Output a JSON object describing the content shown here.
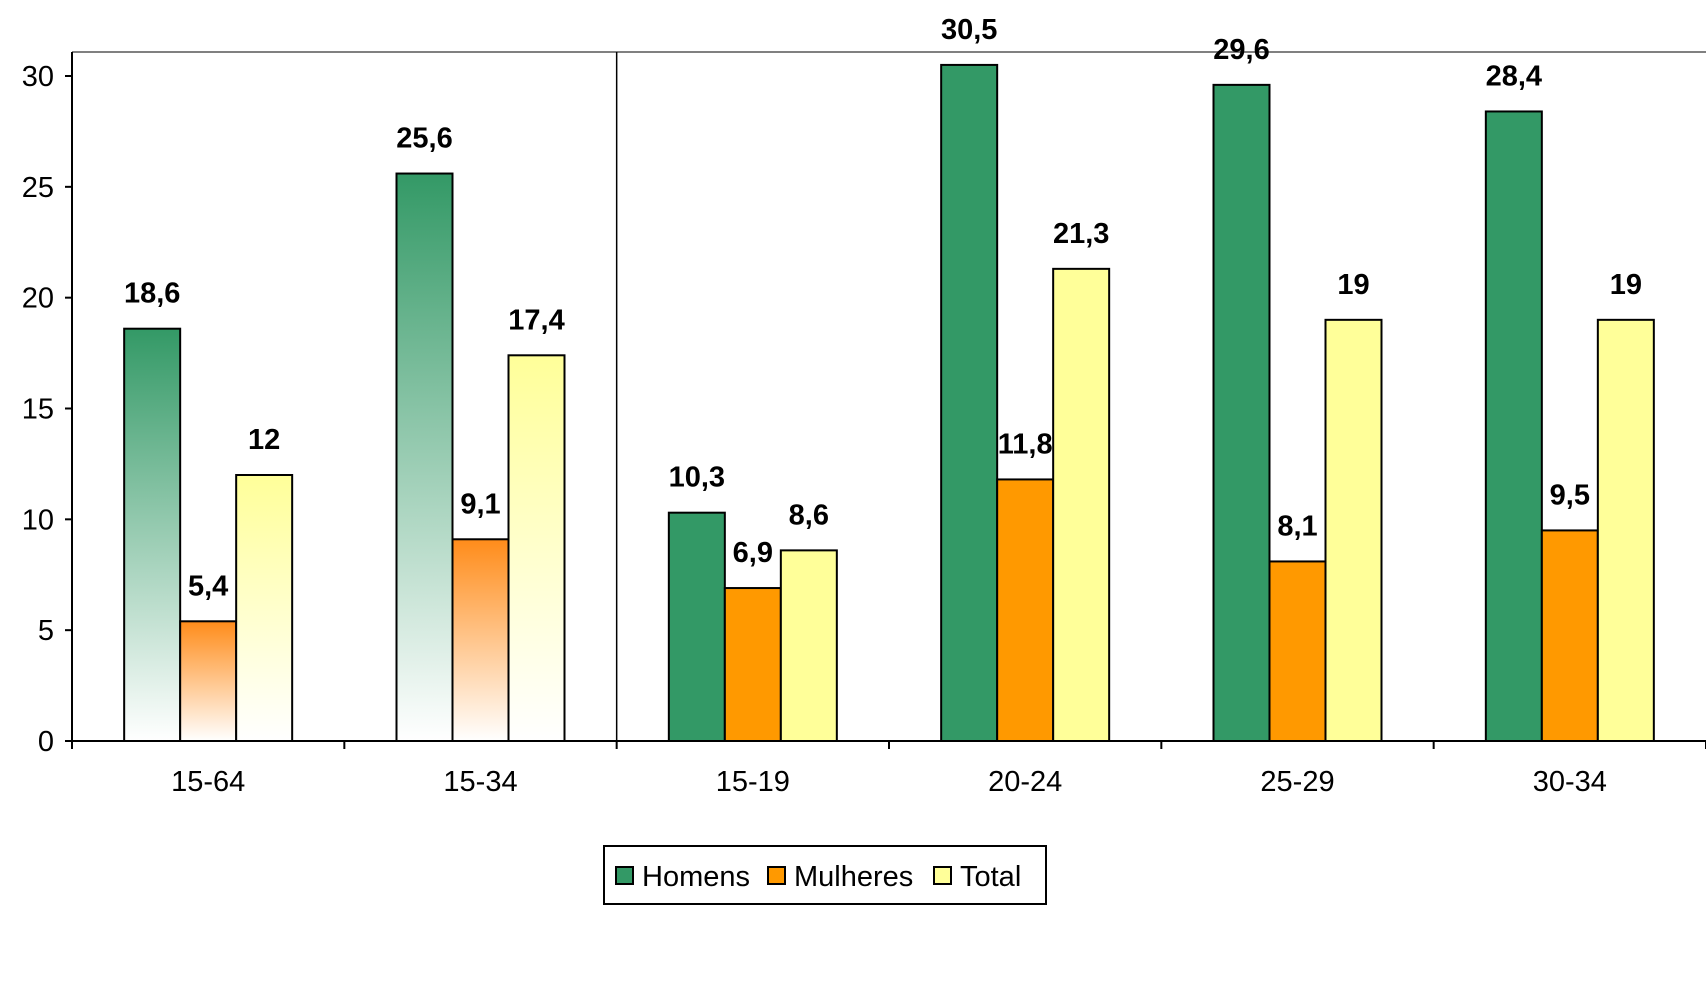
{
  "chart_data": {
    "type": "bar",
    "title": "",
    "xlabel": "",
    "ylabel": "",
    "ylim": [
      0,
      30
    ],
    "yticks": [
      0,
      5,
      10,
      15,
      20,
      25,
      30
    ],
    "categories": [
      "15-64",
      "15-34",
      "15-19",
      "20-24",
      "25-29",
      "30-34"
    ],
    "series": [
      {
        "name": "Homens",
        "values": [
          18.6,
          25.6,
          10.3,
          30.5,
          29.6,
          28.4
        ],
        "labels": [
          "18,6",
          "25,6",
          "10,3",
          "30,5",
          "29,6",
          "28,4"
        ]
      },
      {
        "name": "Mulheres",
        "values": [
          5.4,
          9.1,
          6.9,
          11.8,
          8.1,
          9.5
        ],
        "labels": [
          "5,4",
          "9,1",
          "6,9",
          "11,8",
          "8,1",
          "9,5"
        ]
      },
      {
        "name": "Total",
        "values": [
          12,
          17.4,
          8.6,
          21.3,
          19,
          19
        ],
        "labels": [
          "12",
          "17,4",
          "8,6",
          "21,3",
          "19",
          "19"
        ]
      }
    ],
    "colors": {
      "Homens": "#339966",
      "Mulheres": "#ff9900",
      "Total": "#ffff99"
    },
    "gradient_fill_categories": [
      "15-64",
      "15-34"
    ],
    "separator_after_category": "15-34",
    "legend_position": "bottom-center",
    "grid": false
  }
}
